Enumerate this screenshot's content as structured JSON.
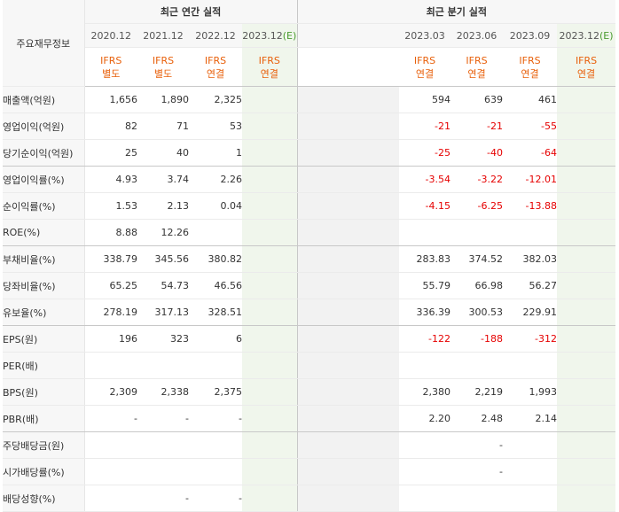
{
  "header": {
    "label_col": "주요재무정보",
    "annual_title": "최근 연간 실적",
    "quarter_title": "최근 분기 실적"
  },
  "annual_periods": [
    {
      "period": "2020.12",
      "est": "",
      "std1": "IFRS",
      "std2": "별도"
    },
    {
      "period": "2021.12",
      "est": "",
      "std1": "IFRS",
      "std2": "별도"
    },
    {
      "period": "2022.12",
      "est": "",
      "std1": "IFRS",
      "std2": "연결"
    },
    {
      "period": "2023.12",
      "est": "(E)",
      "std1": "IFRS",
      "std2": "연결"
    }
  ],
  "quarter_periods": [
    {
      "period": "2023.03",
      "est": "",
      "std1": "IFRS",
      "std2": "연결"
    },
    {
      "period": "2023.06",
      "est": "",
      "std1": "IFRS",
      "std2": "연결"
    },
    {
      "period": "2023.09",
      "est": "",
      "std1": "IFRS",
      "std2": "연결"
    },
    {
      "period": "2023.12",
      "est": "(E)",
      "std1": "IFRS",
      "std2": "연결"
    }
  ],
  "rows": [
    {
      "label": "매출액(억원)",
      "annual": [
        "1,656",
        "1,890",
        "2,325",
        ""
      ],
      "quarter": [
        "594",
        "639",
        "461",
        ""
      ]
    },
    {
      "label": "영업이익(억원)",
      "annual": [
        "82",
        "71",
        "53",
        ""
      ],
      "quarter": [
        "-21",
        "-21",
        "-55",
        ""
      ]
    },
    {
      "label": "당기순이익(억원)",
      "annual": [
        "25",
        "40",
        "1",
        ""
      ],
      "quarter": [
        "-25",
        "-40",
        "-64",
        ""
      ]
    },
    {
      "label": "영업이익률(%)",
      "annual": [
        "4.93",
        "3.74",
        "2.26",
        ""
      ],
      "quarter": [
        "-3.54",
        "-3.22",
        "-12.01",
        ""
      ]
    },
    {
      "label": "순이익률(%)",
      "annual": [
        "1.53",
        "2.13",
        "0.04",
        ""
      ],
      "quarter": [
        "-4.15",
        "-6.25",
        "-13.88",
        ""
      ]
    },
    {
      "label": "ROE(%)",
      "annual": [
        "8.88",
        "12.26",
        "",
        ""
      ],
      "quarter": [
        "",
        "",
        "",
        ""
      ]
    },
    {
      "label": "부채비율(%)",
      "annual": [
        "338.79",
        "345.56",
        "380.82",
        ""
      ],
      "quarter": [
        "283.83",
        "374.52",
        "382.03",
        ""
      ]
    },
    {
      "label": "당좌비율(%)",
      "annual": [
        "65.25",
        "54.73",
        "46.56",
        ""
      ],
      "quarter": [
        "55.79",
        "66.98",
        "56.27",
        ""
      ]
    },
    {
      "label": "유보율(%)",
      "annual": [
        "278.19",
        "317.13",
        "328.51",
        ""
      ],
      "quarter": [
        "336.39",
        "300.53",
        "229.91",
        ""
      ]
    },
    {
      "label": "EPS(원)",
      "annual": [
        "196",
        "323",
        "6",
        ""
      ],
      "quarter": [
        "-122",
        "-188",
        "-312",
        ""
      ]
    },
    {
      "label": "PER(배)",
      "annual": [
        "",
        "",
        "",
        ""
      ],
      "quarter": [
        "",
        "",
        "",
        ""
      ]
    },
    {
      "label": "BPS(원)",
      "annual": [
        "2,309",
        "2,338",
        "2,375",
        ""
      ],
      "quarter": [
        "2,380",
        "2,219",
        "1,993",
        ""
      ]
    },
    {
      "label": "PBR(배)",
      "annual": [
        "-",
        "-",
        "-",
        ""
      ],
      "quarter": [
        "2.20",
        "2.48",
        "2.14",
        ""
      ]
    },
    {
      "label": "주당배당금(원)",
      "annual": [
        "",
        "",
        "",
        ""
      ],
      "quarter": [
        "",
        "-",
        "",
        ""
      ]
    },
    {
      "label": "시가배당률(%)",
      "annual": [
        "",
        "",
        "",
        ""
      ],
      "quarter": [
        "",
        "-",
        "",
        ""
      ]
    },
    {
      "label": "배당성향(%)",
      "annual": [
        "",
        "-",
        "-",
        ""
      ],
      "quarter": [
        "",
        "",
        "",
        ""
      ]
    }
  ],
  "colors": {
    "negative": "#e60000",
    "standard": "#e8600b",
    "estimate_bg": "#f0f6ec",
    "estimate_mark": "#4a9b2f"
  }
}
